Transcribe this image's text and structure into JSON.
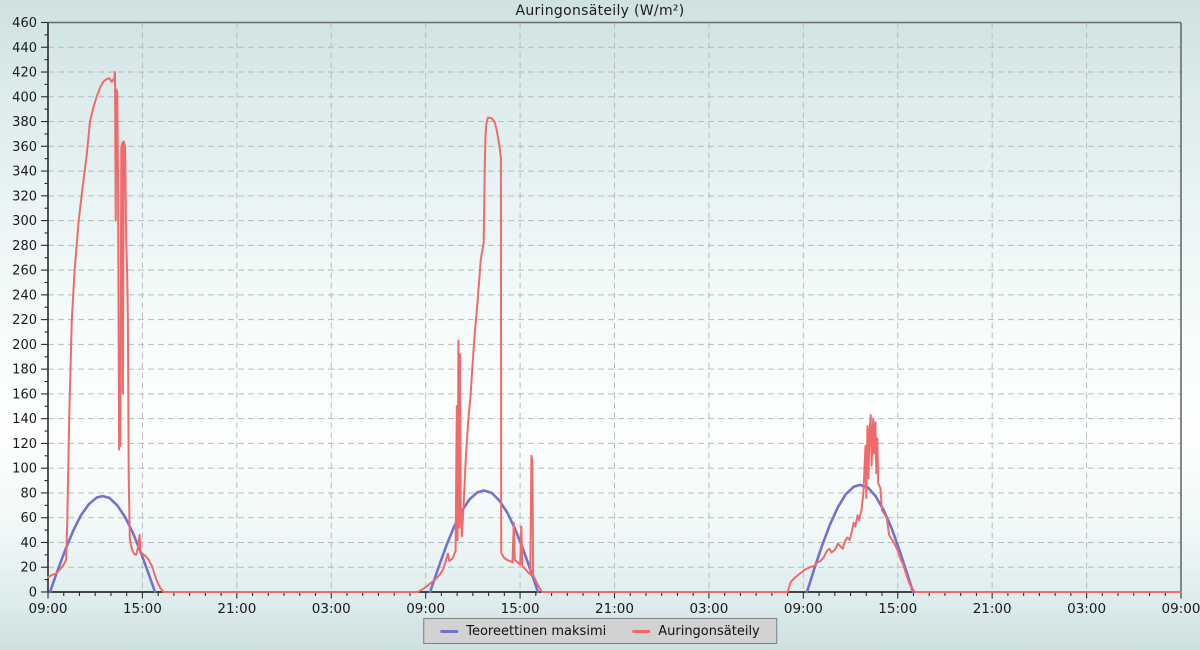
{
  "title": "Auringonsäteily (W/m²)",
  "colors": {
    "theoretical_line": "#7172cf",
    "measured_line": "#ef6b6b",
    "grid": "#b7bcbc",
    "axis_dark": "#2b2b2b",
    "axis_light": "#6a6a6a",
    "text": "#1a1a1a",
    "legend_bg": "#d2d2d2",
    "legend_border": "#7f7f7f"
  },
  "legend": {
    "items": [
      {
        "label": "Teoreettinen maksimi",
        "color": "#7172cf"
      },
      {
        "label": "Auringonsäteily",
        "color": "#ef6b6b"
      }
    ]
  },
  "chart_data": {
    "type": "line",
    "title": "Auringonsäteily (W/m²)",
    "xlabel": "",
    "ylabel": "W/m²",
    "xlim_hours": [
      0,
      72
    ],
    "ylim": [
      0,
      460
    ],
    "grid": true,
    "legend_position": "bottom-center",
    "x_axis": {
      "minor_tick_every_h": 1,
      "major_tick_every_h": 6,
      "ticks": [
        {
          "h": 0,
          "label": "09:00"
        },
        {
          "h": 6,
          "label": "15:00"
        },
        {
          "h": 12,
          "label": "21:00"
        },
        {
          "h": 18,
          "label": "03:00"
        },
        {
          "h": 24,
          "label": "09:00"
        },
        {
          "h": 30,
          "label": "15:00"
        },
        {
          "h": 36,
          "label": "21:00"
        },
        {
          "h": 42,
          "label": "03:00"
        },
        {
          "h": 48,
          "label": "09:00"
        },
        {
          "h": 54,
          "label": "15:00"
        },
        {
          "h": 60,
          "label": "21:00"
        },
        {
          "h": 66,
          "label": "03:00"
        },
        {
          "h": 72,
          "label": "09:00"
        }
      ]
    },
    "y_axis": {
      "major_step": 20,
      "minor_step": 10
    },
    "series": [
      {
        "name": "Teoreettinen maksimi",
        "color": "#7172cf",
        "width": 2.6,
        "segments": [
          [
            [
              0.13,
              0
            ],
            [
              0.6,
              17
            ],
            [
              1.1,
              34
            ],
            [
              1.6,
              49.5
            ],
            [
              2.1,
              62
            ],
            [
              2.6,
              71
            ],
            [
              3.1,
              76.3
            ],
            [
              3.47,
              77.5
            ],
            [
              3.9,
              76
            ],
            [
              4.4,
              70
            ],
            [
              4.9,
              60.5
            ],
            [
              5.4,
              47.6
            ],
            [
              5.9,
              32
            ],
            [
              6.4,
              14.6
            ],
            [
              6.8,
              0
            ]
          ],
          [
            [
              24.28,
              0
            ],
            [
              24.8,
              19.3
            ],
            [
              25.3,
              36.9
            ],
            [
              25.8,
              52.6
            ],
            [
              26.3,
              65.5
            ],
            [
              26.8,
              75
            ],
            [
              27.3,
              80.6
            ],
            [
              27.71,
              82
            ],
            [
              28.2,
              80
            ],
            [
              28.7,
              73.7
            ],
            [
              29.2,
              63.7
            ],
            [
              29.7,
              50.3
            ],
            [
              30.2,
              34.2
            ],
            [
              30.7,
              16.4
            ],
            [
              31.14,
              0
            ]
          ],
          [
            [
              48.23,
              0
            ],
            [
              48.7,
              18.8
            ],
            [
              49.2,
              37.8
            ],
            [
              49.7,
              54.7
            ],
            [
              50.2,
              68.7
            ],
            [
              50.7,
              79
            ],
            [
              51.2,
              85
            ],
            [
              51.6,
              86.5
            ],
            [
              52.1,
              84.4
            ],
            [
              52.6,
              77.3
            ],
            [
              53.1,
              66.3
            ],
            [
              53.6,
              51.7
            ],
            [
              54.1,
              34.2
            ],
            [
              54.6,
              14.9
            ],
            [
              54.97,
              0
            ]
          ]
        ]
      },
      {
        "name": "Auringonsäteily",
        "color": "#ef6b6b",
        "width": 2,
        "points": [
          [
            0,
            12
          ],
          [
            0.3,
            14
          ],
          [
            0.55,
            15
          ],
          [
            0.8,
            19
          ],
          [
            1.0,
            22
          ],
          [
            1.15,
            26
          ],
          [
            1.22,
            55
          ],
          [
            1.35,
            140
          ],
          [
            1.51,
            220
          ],
          [
            1.7,
            262
          ],
          [
            1.95,
            300
          ],
          [
            2.2,
            327
          ],
          [
            2.45,
            352
          ],
          [
            2.67,
            380
          ],
          [
            2.9,
            392
          ],
          [
            3.09,
            400
          ],
          [
            3.3,
            407
          ],
          [
            3.5,
            412
          ],
          [
            3.7,
            414
          ],
          [
            3.9,
            415
          ],
          [
            4.05,
            412
          ],
          [
            4.15,
            414
          ],
          [
            4.2,
            413
          ],
          [
            4.26,
            420
          ],
          [
            4.3,
            300
          ],
          [
            4.34,
            406
          ],
          [
            4.4,
            404
          ],
          [
            4.45,
            335
          ],
          [
            4.52,
            115
          ],
          [
            4.56,
            170
          ],
          [
            4.6,
            118
          ],
          [
            4.66,
            358
          ],
          [
            4.72,
            363
          ],
          [
            4.76,
            160
          ],
          [
            4.81,
            364
          ],
          [
            4.9,
            360
          ],
          [
            4.97,
            284
          ],
          [
            5.03,
            256
          ],
          [
            5.08,
            220
          ],
          [
            5.13,
            95
          ],
          [
            5.2,
            43
          ],
          [
            5.3,
            36
          ],
          [
            5.45,
            31
          ],
          [
            5.6,
            30
          ],
          [
            5.72,
            36
          ],
          [
            5.82,
            46
          ],
          [
            5.88,
            33
          ],
          [
            6.0,
            31
          ],
          [
            6.2,
            29
          ],
          [
            6.4,
            26
          ],
          [
            6.6,
            21
          ],
          [
            6.78,
            14
          ],
          [
            6.95,
            8
          ],
          [
            7.15,
            3
          ],
          [
            7.35,
            0
          ],
          [
            12,
            0
          ],
          [
            18,
            0
          ],
          [
            23.5,
            0
          ],
          [
            23.9,
            3
          ],
          [
            24.3,
            7
          ],
          [
            24.6,
            10
          ],
          [
            24.9,
            14
          ],
          [
            25.1,
            18
          ],
          [
            25.3,
            26
          ],
          [
            25.42,
            31
          ],
          [
            25.5,
            25
          ],
          [
            25.7,
            27
          ],
          [
            25.9,
            33
          ],
          [
            25.98,
            150
          ],
          [
            26.02,
            42
          ],
          [
            26.08,
            203
          ],
          [
            26.13,
            52
          ],
          [
            26.18,
            192
          ],
          [
            26.23,
            64
          ],
          [
            26.3,
            45
          ],
          [
            26.42,
            72
          ],
          [
            26.55,
            108
          ],
          [
            26.7,
            138
          ],
          [
            26.85,
            158
          ],
          [
            27.0,
            188
          ],
          [
            27.15,
            213
          ],
          [
            27.3,
            235
          ],
          [
            27.42,
            255
          ],
          [
            27.5,
            268
          ],
          [
            27.6,
            276
          ],
          [
            27.68,
            282
          ],
          [
            27.72,
            310
          ],
          [
            27.76,
            345
          ],
          [
            27.8,
            368
          ],
          [
            27.85,
            378
          ],
          [
            27.95,
            383
          ],
          [
            28.1,
            383
          ],
          [
            28.25,
            382
          ],
          [
            28.4,
            379
          ],
          [
            28.5,
            374
          ],
          [
            28.6,
            367
          ],
          [
            28.7,
            359
          ],
          [
            28.78,
            351
          ],
          [
            28.8,
            32
          ],
          [
            28.95,
            28
          ],
          [
            29.15,
            26
          ],
          [
            29.35,
            25
          ],
          [
            29.52,
            24
          ],
          [
            29.6,
            56
          ],
          [
            29.66,
            26
          ],
          [
            29.85,
            24
          ],
          [
            30.0,
            22
          ],
          [
            30.08,
            53
          ],
          [
            30.14,
            21
          ],
          [
            30.3,
            19
          ],
          [
            30.5,
            16
          ],
          [
            30.65,
            14
          ],
          [
            30.72,
            110
          ],
          [
            30.78,
            106
          ],
          [
            30.83,
            14
          ],
          [
            31.0,
            9
          ],
          [
            31.2,
            4
          ],
          [
            31.4,
            0
          ],
          [
            36,
            0
          ],
          [
            42,
            0
          ],
          [
            47.0,
            0
          ],
          [
            47.2,
            8
          ],
          [
            47.5,
            12
          ],
          [
            47.8,
            15
          ],
          [
            48.1,
            18
          ],
          [
            48.4,
            20
          ],
          [
            48.7,
            21
          ],
          [
            48.9,
            24
          ],
          [
            49.1,
            25
          ],
          [
            49.3,
            28
          ],
          [
            49.5,
            33
          ],
          [
            49.65,
            35
          ],
          [
            49.8,
            32
          ],
          [
            50.0,
            34
          ],
          [
            50.2,
            39
          ],
          [
            50.35,
            37
          ],
          [
            50.5,
            35
          ],
          [
            50.65,
            41
          ],
          [
            50.8,
            44
          ],
          [
            50.95,
            42
          ],
          [
            51.1,
            50
          ],
          [
            51.2,
            56
          ],
          [
            51.3,
            53
          ],
          [
            51.45,
            62
          ],
          [
            51.55,
            58
          ],
          [
            51.7,
            67
          ],
          [
            51.82,
            80
          ],
          [
            51.95,
            118
          ],
          [
            52.0,
            76
          ],
          [
            52.08,
            134
          ],
          [
            52.14,
            92
          ],
          [
            52.2,
            128
          ],
          [
            52.28,
            143
          ],
          [
            52.34,
            102
          ],
          [
            52.44,
            140
          ],
          [
            52.5,
            112
          ],
          [
            52.58,
            137
          ],
          [
            52.64,
            96
          ],
          [
            52.7,
            124
          ],
          [
            52.76,
            88
          ],
          [
            52.9,
            84
          ],
          [
            53.0,
            66
          ],
          [
            53.15,
            63
          ],
          [
            53.3,
            60
          ],
          [
            53.45,
            46
          ],
          [
            53.6,
            43
          ],
          [
            53.75,
            40
          ],
          [
            53.9,
            36
          ],
          [
            54.05,
            32
          ],
          [
            54.2,
            26
          ],
          [
            54.35,
            22
          ],
          [
            54.5,
            16
          ],
          [
            54.7,
            8
          ],
          [
            54.9,
            3
          ],
          [
            55.1,
            0
          ],
          [
            60,
            0
          ],
          [
            66,
            0
          ],
          [
            72,
            0
          ]
        ]
      }
    ]
  }
}
